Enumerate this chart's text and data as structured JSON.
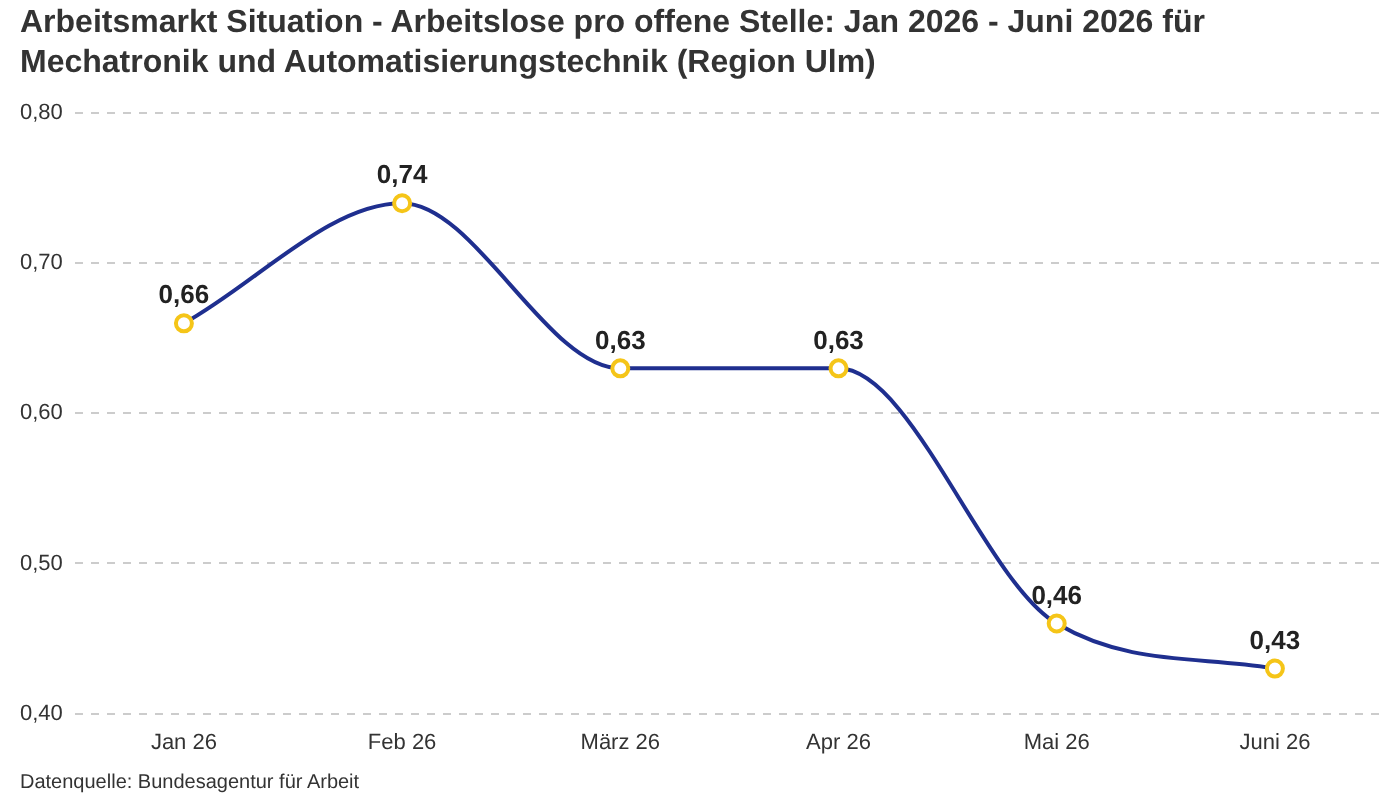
{
  "chart_data": {
    "type": "line",
    "title": "Arbeitsmarkt Situation - Arbeitslose pro offene Stelle: Jan 2026 - Juni 2026 für Mechatronik und Automatisierungstechnik (Region Ulm)",
    "categories": [
      "Jan 26",
      "Feb 26",
      "März 26",
      "Apr 26",
      "Mai 26",
      "Juni 26"
    ],
    "series": [
      {
        "color": "#1f2f8f",
        "values": [
          0.66,
          0.74,
          0.63,
          0.63,
          0.46,
          0.43
        ],
        "value_labels": [
          "0,66",
          "0,74",
          "0,63",
          "0,63",
          "0,46",
          "0,43"
        ]
      }
    ],
    "ylim": [
      0.4,
      0.8
    ],
    "yticks": [
      {
        "value": 0.4,
        "label": "0,40"
      },
      {
        "value": 0.5,
        "label": "0,50"
      },
      {
        "value": 0.6,
        "label": "0,60"
      },
      {
        "value": 0.7,
        "label": "0,70"
      },
      {
        "value": 0.8,
        "label": "0,80"
      }
    ],
    "grid": "y",
    "legend": false,
    "marker": "circle",
    "line_style": "solid",
    "annotations": [
      "Datenquelle: Bundesagentur für Arbeit"
    ]
  }
}
